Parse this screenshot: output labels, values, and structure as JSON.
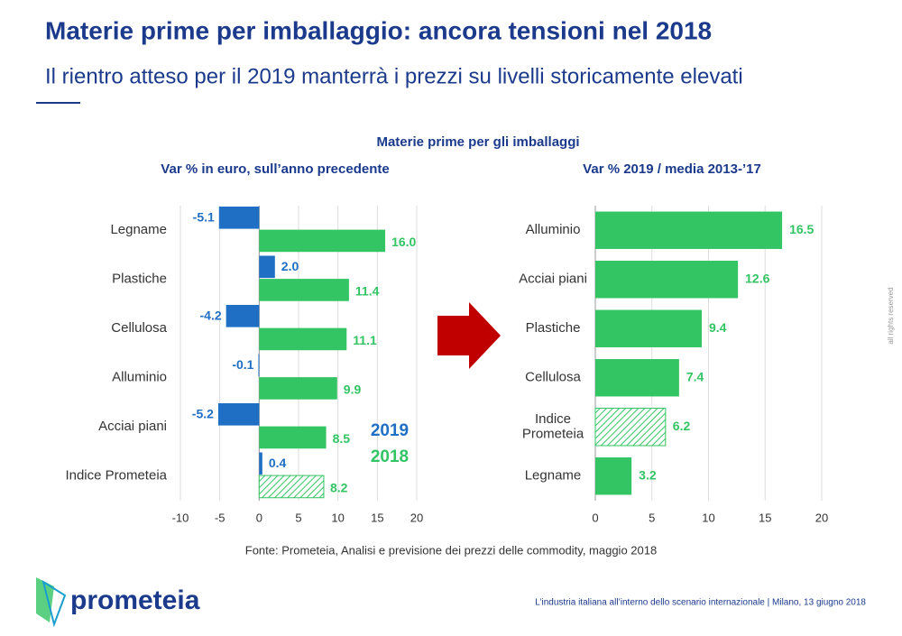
{
  "header": {
    "title": "Materie prime per imballaggio: ancora tensioni nel 2018",
    "subtitle": "Il rientro atteso per il 2019 manterrà i prezzi su livelli storicamente elevati"
  },
  "section_title": "Materie prime per gli imballaggi",
  "chart_data": [
    {
      "type": "bar",
      "orientation": "horizontal",
      "title": "Var % in euro, sull’anno precedente",
      "categories": [
        "Legname",
        "Plastiche",
        "Cellulosa",
        "Alluminio",
        "Acciai piani",
        "Indice Prometeia"
      ],
      "series": [
        {
          "name": "2019",
          "color": "#1f6fc5",
          "values": [
            -5.1,
            2.0,
            -4.2,
            -0.1,
            -5.2,
            0.4
          ],
          "value_labels": [
            "-5.1",
            "2.0",
            "-4.2",
            "-0.1",
            "-5.2",
            "0.4"
          ]
        },
        {
          "name": "2018",
          "color": "#33c463",
          "values": [
            16.0,
            11.4,
            11.1,
            9.9,
            8.5,
            8.2
          ],
          "value_labels": [
            "16.0",
            "11.4",
            "11.1",
            "9.9",
            "8.5",
            "8.2"
          ]
        }
      ],
      "hatched_categories": [
        5
      ],
      "xlim": [
        -10,
        20
      ],
      "xticks": [
        -10,
        -5,
        0,
        5,
        10,
        15,
        20
      ],
      "grid": true
    },
    {
      "type": "bar",
      "orientation": "horizontal",
      "title": "Var % 2019 / media 2013-’17",
      "categories": [
        "Alluminio",
        "Acciai piani",
        "Plastiche",
        "Cellulosa",
        "Indice\nPrometeia",
        "Legname"
      ],
      "values": [
        16.5,
        12.6,
        9.4,
        7.4,
        6.2,
        3.2
      ],
      "color": "#33c463",
      "hatched_categories": [
        4
      ],
      "xlim": [
        0,
        20
      ],
      "xticks": [
        0,
        5,
        10,
        15,
        20
      ],
      "grid": true
    }
  ],
  "source": "Fonte: Prometeia, Analisi e previsione dei prezzi delle commodity, maggio 2018",
  "brand": "prometeia",
  "footer": "L’industria italiana all’interno dello scenario internazionale | Milano, 13 giugno 2018",
  "rights": "all rights reserved"
}
